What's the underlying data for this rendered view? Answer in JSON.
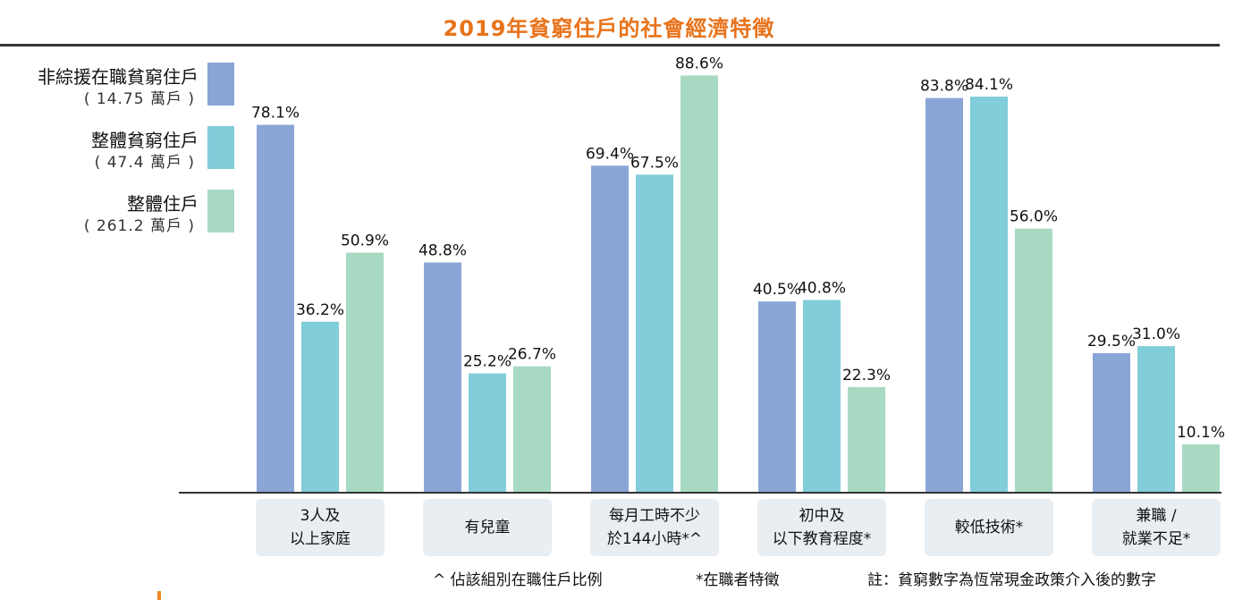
{
  "chart_data": {
    "type": "bar",
    "title": "2019年貧窮住戶的社會經濟特徵",
    "ylim": [
      0,
      100
    ],
    "grid": false,
    "legend_position": "left",
    "categories": [
      "3人及\n以上家庭",
      "有兒童",
      "每月工時不少\n於144小時*^",
      "初中及\n以下教育程度*",
      "較低技術*",
      "兼職 /\n就業不足*"
    ],
    "series": [
      {
        "name": "非綜援在職貧窮住戶",
        "count": "( 14.75 萬戶 )",
        "color": "#8aa6d6",
        "values": [
          78.1,
          48.8,
          69.4,
          40.5,
          83.8,
          29.5
        ],
        "labels": [
          "78.1%",
          "48.8%",
          "69.4%",
          "40.5%",
          "83.8%",
          "29.5%"
        ]
      },
      {
        "name": "整體貧窮住戶",
        "count": "( 47.4 萬戶 )",
        "color": "#82cdda",
        "values": [
          36.2,
          25.2,
          67.5,
          40.8,
          84.1,
          31.0
        ],
        "labels": [
          "36.2%",
          "25.2%",
          "67.5%",
          "40.8%",
          "84.1%",
          "31.0%"
        ]
      },
      {
        "name": "整體住戶",
        "count": "( 261.2 萬戶 )",
        "color": "#a8d9c3",
        "values": [
          50.9,
          26.7,
          88.6,
          22.3,
          56.0,
          10.1
        ],
        "labels": [
          "50.9%",
          "26.7%",
          "88.6%",
          "22.3%",
          "56.0%",
          "10.1%"
        ]
      }
    ],
    "footnotes": [
      "^ 佔該組別在職住戶比例",
      "*在職者特徵",
      "註：貧窮數字為恆常現金政策介入後的數字"
    ]
  }
}
